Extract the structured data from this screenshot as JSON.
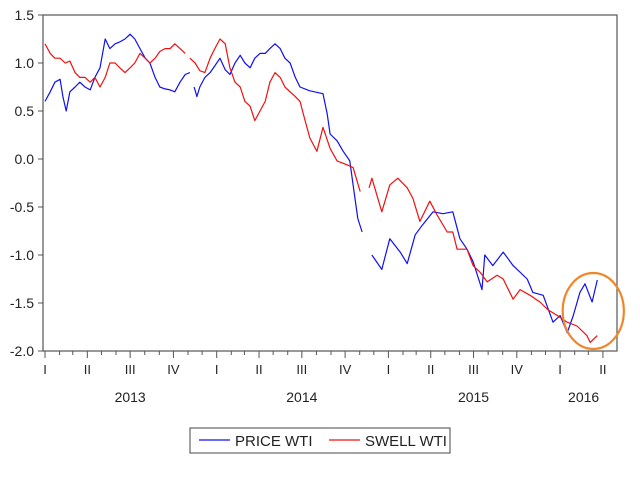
{
  "chart_data": {
    "type": "line",
    "title": "",
    "xlabel": "",
    "ylabel": "",
    "ylim": [
      -2.0,
      1.5
    ],
    "yticks": [
      "1.5",
      "1.0",
      "0.5",
      "0.0",
      "-0.5",
      "-1.0",
      "-1.5",
      "-2.0"
    ],
    "ytick_values": [
      1.5,
      1.0,
      0.5,
      0.0,
      -0.5,
      -1.0,
      -1.5,
      -2.0
    ],
    "xlim": [
      "2013-01-01",
      "2016-04-20"
    ],
    "quarter_ticks": [
      {
        "label": "I",
        "date": "2013-01-01"
      },
      {
        "label": "II",
        "date": "2013-04-01"
      },
      {
        "label": "III",
        "date": "2013-07-01"
      },
      {
        "label": "IV",
        "date": "2013-10-01"
      },
      {
        "label": "I",
        "date": "2014-01-01"
      },
      {
        "label": "II",
        "date": "2014-04-01"
      },
      {
        "label": "III",
        "date": "2014-07-01"
      },
      {
        "label": "IV",
        "date": "2014-10-01"
      },
      {
        "label": "I",
        "date": "2015-01-01"
      },
      {
        "label": "II",
        "date": "2015-04-01"
      },
      {
        "label": "III",
        "date": "2015-07-01"
      },
      {
        "label": "IV",
        "date": "2015-10-01"
      },
      {
        "label": "I",
        "date": "2016-01-01"
      },
      {
        "label": "II",
        "date": "2016-04-01"
      }
    ],
    "year_labels": [
      {
        "label": "2013",
        "date": "2013-07-01"
      },
      {
        "label": "2014",
        "date": "2014-07-01"
      },
      {
        "label": "2015",
        "date": "2015-07-01"
      },
      {
        "label": "2016",
        "date": "2016-02-20"
      }
    ],
    "grid": false,
    "legend_position": "bottom",
    "annotation": {
      "shape": "ellipse",
      "color": "#F0862A",
      "around": [
        "2016-01-15",
        "2016-04-20"
      ]
    },
    "series": [
      {
        "name": "PRICE WTI",
        "color": "#1010F0",
        "points": [
          [
            "2013-01-01",
            0.6
          ],
          [
            "2013-01-12",
            0.7
          ],
          [
            "2013-01-22",
            0.8
          ],
          [
            "2013-02-02",
            0.83
          ],
          [
            "2013-02-08",
            0.65
          ],
          [
            "2013-02-15",
            0.5
          ],
          [
            "2013-02-23",
            0.7
          ],
          [
            "2013-03-06",
            0.75
          ],
          [
            "2013-03-16",
            0.8
          ],
          [
            "2013-03-27",
            0.75
          ],
          [
            "2013-04-07",
            0.72
          ],
          [
            "2013-04-17",
            0.85
          ],
          [
            "2013-04-28",
            0.95
          ],
          [
            "2013-05-09",
            1.25
          ],
          [
            "2013-05-19",
            1.15
          ],
          [
            "2013-05-30",
            1.2
          ],
          [
            "2013-06-09",
            1.22
          ],
          [
            "2013-06-20",
            1.25
          ],
          [
            "2013-07-01",
            1.3
          ],
          [
            "2013-07-11",
            1.25
          ],
          [
            "2013-07-22",
            1.15
          ],
          [
            "2013-08-02",
            1.05
          ],
          [
            "2013-08-12",
            1.0
          ],
          [
            "2013-08-23",
            0.85
          ],
          [
            "2013-09-02",
            0.75
          ],
          [
            "2013-09-13",
            0.73
          ],
          [
            "2013-09-24",
            0.72
          ],
          [
            "2013-10-04",
            0.7
          ],
          [
            "2013-10-15",
            0.8
          ],
          [
            "2013-10-26",
            0.88
          ],
          [
            "2013-11-05",
            0.9
          ],
          [
            "2013-11-10",
            null
          ],
          [
            "2013-11-14",
            0.75
          ],
          [
            "2013-11-20",
            0.65
          ],
          [
            "2013-11-26",
            0.75
          ],
          [
            "2013-12-07",
            0.85
          ],
          [
            "2013-12-18",
            0.9
          ],
          [
            "2013-12-28",
            0.97
          ],
          [
            "2014-01-08",
            1.05
          ],
          [
            "2014-01-19",
            0.93
          ],
          [
            "2014-01-29",
            0.88
          ],
          [
            "2014-02-09",
            1.0
          ],
          [
            "2014-02-20",
            1.08
          ],
          [
            "2014-03-02",
            1.0
          ],
          [
            "2014-03-13",
            0.95
          ],
          [
            "2014-03-23",
            1.05
          ],
          [
            "2014-04-03",
            1.1
          ],
          [
            "2014-04-14",
            1.1
          ],
          [
            "2014-04-24",
            1.15
          ],
          [
            "2014-05-05",
            1.2
          ],
          [
            "2014-05-16",
            1.15
          ],
          [
            "2014-05-26",
            1.05
          ],
          [
            "2014-06-06",
            1.0
          ],
          [
            "2014-06-17",
            0.85
          ],
          [
            "2014-06-27",
            0.75
          ],
          [
            "2014-07-18",
            0.71
          ],
          [
            "2014-08-15",
            0.68
          ],
          [
            "2014-08-24",
            0.47
          ],
          [
            "2014-08-30",
            0.26
          ],
          [
            "2014-09-14",
            0.19
          ],
          [
            "2014-09-27",
            0.08
          ],
          [
            "2014-10-11",
            -0.02
          ],
          [
            "2014-10-18",
            -0.27
          ],
          [
            "2014-10-28",
            -0.62
          ],
          [
            "2014-11-06",
            -0.76
          ],
          [
            "2014-11-17",
            null
          ],
          [
            "2014-11-27",
            -1.0
          ],
          [
            "2014-12-18",
            -1.15
          ],
          [
            "2015-01-04",
            -0.83
          ],
          [
            "2015-01-26",
            -0.97
          ],
          [
            "2015-02-10",
            -1.09
          ],
          [
            "2015-02-27",
            -0.79
          ],
          [
            "2015-03-14",
            -0.69
          ],
          [
            "2015-04-06",
            -0.55
          ],
          [
            "2015-04-27",
            -0.57
          ],
          [
            "2015-05-18",
            -0.55
          ],
          [
            "2015-06-02",
            -0.83
          ],
          [
            "2015-06-17",
            -0.94
          ],
          [
            "2015-06-30",
            -1.07
          ],
          [
            "2015-07-19",
            -1.36
          ],
          [
            "2015-07-25",
            -1.0
          ],
          [
            "2015-08-11",
            -1.11
          ],
          [
            "2015-09-02",
            -0.97
          ],
          [
            "2015-09-23",
            -1.11
          ],
          [
            "2015-10-23",
            -1.25
          ],
          [
            "2015-11-04",
            -1.39
          ],
          [
            "2015-11-26",
            -1.42
          ],
          [
            "2015-12-17",
            -1.7
          ],
          [
            "2016-01-01",
            -1.63
          ],
          [
            "2016-01-16",
            -1.81
          ],
          [
            "2016-01-29",
            -1.63
          ],
          [
            "2016-02-12",
            -1.39
          ],
          [
            "2016-02-23",
            -1.3
          ],
          [
            "2016-03-09",
            -1.49
          ],
          [
            "2016-03-20",
            -1.26
          ]
        ]
      },
      {
        "name": "SWELL WTI",
        "color": "#F01010",
        "points": [
          [
            "2013-01-01",
            1.2
          ],
          [
            "2013-01-12",
            1.1
          ],
          [
            "2013-01-22",
            1.05
          ],
          [
            "2013-02-02",
            1.05
          ],
          [
            "2013-02-13",
            1.0
          ],
          [
            "2013-02-23",
            1.02
          ],
          [
            "2013-03-06",
            0.9
          ],
          [
            "2013-03-16",
            0.85
          ],
          [
            "2013-03-27",
            0.85
          ],
          [
            "2013-04-07",
            0.8
          ],
          [
            "2013-04-17",
            0.85
          ],
          [
            "2013-04-28",
            0.75
          ],
          [
            "2013-05-09",
            0.85
          ],
          [
            "2013-05-19",
            1.0
          ],
          [
            "2013-05-30",
            1.0
          ],
          [
            "2013-06-09",
            0.95
          ],
          [
            "2013-06-20",
            0.9
          ],
          [
            "2013-07-01",
            0.95
          ],
          [
            "2013-07-11",
            1.0
          ],
          [
            "2013-07-22",
            1.1
          ],
          [
            "2013-08-02",
            1.05
          ],
          [
            "2013-08-12",
            1.0
          ],
          [
            "2013-08-23",
            1.05
          ],
          [
            "2013-09-02",
            1.12
          ],
          [
            "2013-09-13",
            1.15
          ],
          [
            "2013-09-24",
            1.15
          ],
          [
            "2013-10-04",
            1.2
          ],
          [
            "2013-10-15",
            1.15
          ],
          [
            "2013-10-26",
            1.1
          ],
          [
            "2013-10-30",
            null
          ],
          [
            "2013-11-05",
            1.05
          ],
          [
            "2013-11-16",
            1.0
          ],
          [
            "2013-11-26",
            0.92
          ],
          [
            "2013-12-07",
            0.9
          ],
          [
            "2013-12-18",
            1.05
          ],
          [
            "2013-12-28",
            1.15
          ],
          [
            "2014-01-08",
            1.25
          ],
          [
            "2014-01-19",
            1.2
          ],
          [
            "2014-01-29",
            0.95
          ],
          [
            "2014-02-09",
            0.8
          ],
          [
            "2014-02-20",
            0.75
          ],
          [
            "2014-03-02",
            0.6
          ],
          [
            "2014-03-13",
            0.55
          ],
          [
            "2014-03-23",
            0.4
          ],
          [
            "2014-04-03",
            0.5
          ],
          [
            "2014-04-14",
            0.6
          ],
          [
            "2014-04-24",
            0.8
          ],
          [
            "2014-05-05",
            0.9
          ],
          [
            "2014-05-16",
            0.85
          ],
          [
            "2014-05-26",
            0.75
          ],
          [
            "2014-06-06",
            0.7
          ],
          [
            "2014-06-17",
            0.65
          ],
          [
            "2014-06-27",
            0.6
          ],
          [
            "2014-07-08",
            0.4
          ],
          [
            "2014-07-18",
            0.22
          ],
          [
            "2014-08-02",
            0.08
          ],
          [
            "2014-08-15",
            0.33
          ],
          [
            "2014-08-30",
            0.11
          ],
          [
            "2014-09-14",
            -0.02
          ],
          [
            "2014-10-05",
            -0.06
          ],
          [
            "2014-10-18",
            -0.09
          ],
          [
            "2014-11-02",
            -0.34
          ],
          [
            "2014-11-12",
            null
          ],
          [
            "2014-11-21",
            -0.3
          ],
          [
            "2014-11-27",
            -0.2
          ],
          [
            "2014-12-18",
            -0.55
          ],
          [
            "2015-01-04",
            -0.27
          ],
          [
            "2015-01-21",
            -0.2
          ],
          [
            "2015-02-10",
            -0.3
          ],
          [
            "2015-02-22",
            -0.41
          ],
          [
            "2015-03-09",
            -0.65
          ],
          [
            "2015-03-30",
            -0.44
          ],
          [
            "2015-04-14",
            -0.58
          ],
          [
            "2015-05-06",
            -0.76
          ],
          [
            "2015-05-18",
            -0.76
          ],
          [
            "2015-05-27",
            -0.94
          ],
          [
            "2015-06-17",
            -0.94
          ],
          [
            "2015-06-30",
            -1.11
          ],
          [
            "2015-07-15",
            -1.18
          ],
          [
            "2015-07-30",
            -1.28
          ],
          [
            "2015-08-20",
            -1.21
          ],
          [
            "2015-09-02",
            -1.25
          ],
          [
            "2015-09-23",
            -1.46
          ],
          [
            "2015-10-08",
            -1.36
          ],
          [
            "2015-10-29",
            -1.42
          ],
          [
            "2015-11-19",
            -1.49
          ],
          [
            "2015-12-06",
            -1.57
          ],
          [
            "2015-12-26",
            -1.63
          ],
          [
            "2016-01-16",
            -1.7
          ],
          [
            "2016-02-06",
            -1.74
          ],
          [
            "2016-02-27",
            -1.84
          ],
          [
            "2016-03-05",
            -1.91
          ],
          [
            "2016-03-20",
            -1.84
          ]
        ]
      }
    ]
  }
}
